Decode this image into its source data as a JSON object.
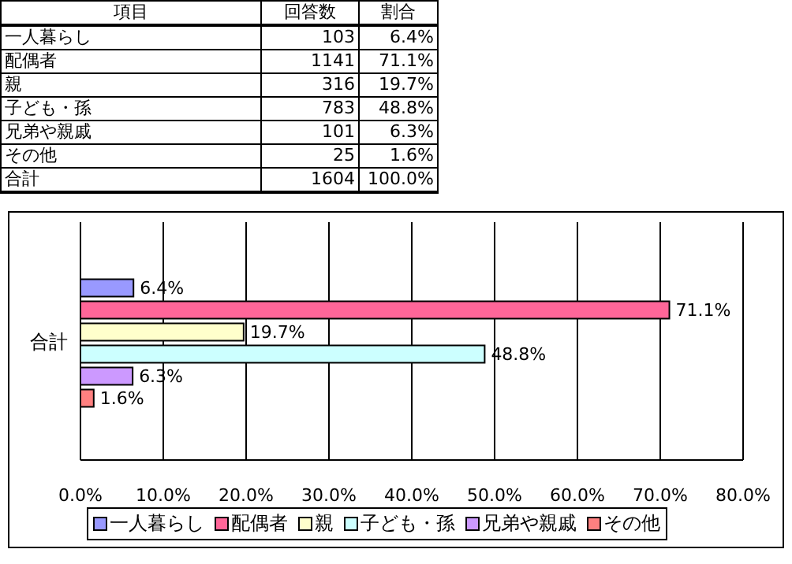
{
  "chart_data": {
    "type": "bar",
    "orientation": "horizontal",
    "categories": [
      "合計"
    ],
    "series": [
      {
        "name": "一人暮らし",
        "color": "#9999ff",
        "values": [
          6.4
        ],
        "value_labels": [
          "6.4%"
        ]
      },
      {
        "name": "配偶者",
        "color": "#ff6699",
        "values": [
          71.1
        ],
        "value_labels": [
          "71.1%"
        ]
      },
      {
        "name": "親",
        "color": "#ffffcc",
        "values": [
          19.7
        ],
        "value_labels": [
          "19.7%"
        ]
      },
      {
        "name": "子ども・孫",
        "color": "#ccffff",
        "values": [
          48.8
        ],
        "value_labels": [
          "48.8%"
        ]
      },
      {
        "name": "兄弟や親戚",
        "color": "#cc99ff",
        "values": [
          6.3
        ],
        "value_labels": [
          "6.3%"
        ]
      },
      {
        "name": "その他",
        "color": "#ff8080",
        "values": [
          1.6
        ],
        "value_labels": [
          "1.6%"
        ]
      }
    ],
    "xlim": [
      0,
      80
    ],
    "xticks": [
      {
        "value": 0,
        "label": "0.0%"
      },
      {
        "value": 10,
        "label": "10.0%"
      },
      {
        "value": 20,
        "label": "20.0%"
      },
      {
        "value": 30,
        "label": "30.0%"
      },
      {
        "value": 40,
        "label": "40.0%"
      },
      {
        "value": 50,
        "label": "50.0%"
      },
      {
        "value": 60,
        "label": "60.0%"
      },
      {
        "value": 70,
        "label": "70.0%"
      },
      {
        "value": 80,
        "label": "80.0%"
      }
    ],
    "grid": "x",
    "legend": "bottom",
    "annotations": [
      "項目",
      "回答数",
      "割合",
      "一人暮らし",
      "103",
      "6.4%",
      "配偶者",
      "1141",
      "71.1%",
      "親",
      "316",
      "19.7%",
      "子ども・孫",
      "783",
      "48.8%",
      "兄弟や親戚",
      "101",
      "6.3%",
      "その他",
      "25",
      "1.6%",
      "合計",
      "1604",
      "100.0%"
    ]
  }
}
